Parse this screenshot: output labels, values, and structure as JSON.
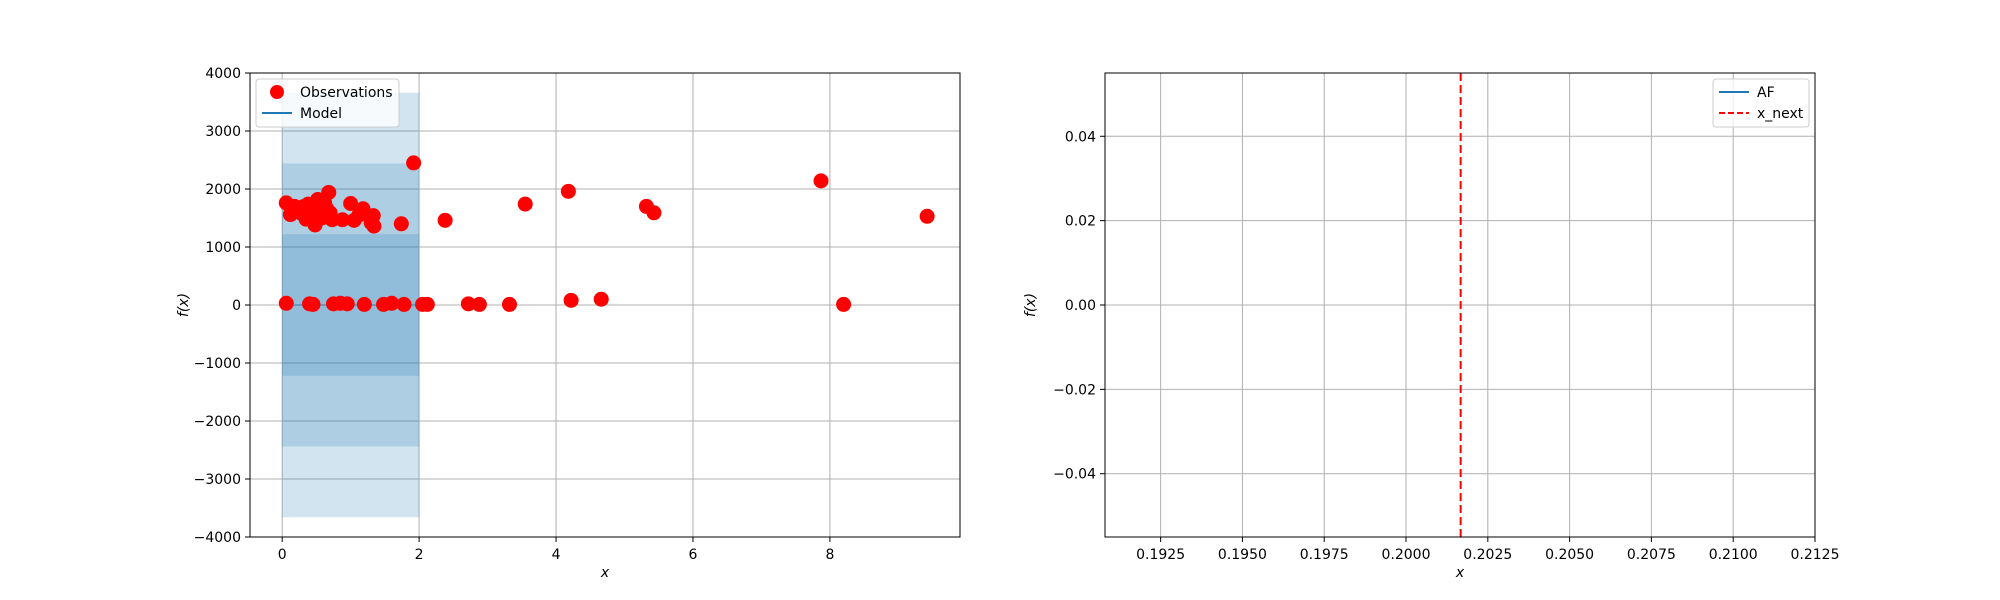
{
  "chart_data": [
    {
      "type": "scatter",
      "title": "",
      "xlabel": "x",
      "ylabel": "f(x)",
      "xlim": [
        -0.47,
        9.9
      ],
      "ylim": [
        -4000,
        4000
      ],
      "xticks": [
        0,
        2,
        4,
        6,
        8
      ],
      "yticks": [
        -4000,
        -3000,
        -2000,
        -1000,
        0,
        1000,
        2000,
        3000,
        4000
      ],
      "grid": true,
      "legend_position": "top-left",
      "legend": [
        "Observations",
        "Model"
      ],
      "series": [
        {
          "name": "Observations",
          "color": "#ff0000",
          "points": [
            [
              0.06,
              1760
            ],
            [
              0.12,
              1560
            ],
            [
              0.18,
              1700
            ],
            [
              0.22,
              1650
            ],
            [
              0.28,
              1580
            ],
            [
              0.32,
              1700
            ],
            [
              0.35,
              1480
            ],
            [
              0.38,
              1740
            ],
            [
              0.42,
              1550
            ],
            [
              0.45,
              1650
            ],
            [
              0.48,
              1380
            ],
            [
              0.5,
              1600
            ],
            [
              0.52,
              1820
            ],
            [
              0.55,
              1700
            ],
            [
              0.58,
              1500
            ],
            [
              0.62,
              1760
            ],
            [
              0.65,
              1660
            ],
            [
              0.68,
              1940
            ],
            [
              0.7,
              1590
            ],
            [
              0.73,
              1470
            ],
            [
              0.88,
              1470
            ],
            [
              1.0,
              1750
            ],
            [
              1.05,
              1460
            ],
            [
              1.12,
              1550
            ],
            [
              1.18,
              1660
            ],
            [
              1.3,
              1420
            ],
            [
              1.33,
              1540
            ],
            [
              1.34,
              1360
            ],
            [
              1.74,
              1400
            ],
            [
              1.92,
              2450
            ],
            [
              2.38,
              1460
            ],
            [
              3.55,
              1740
            ],
            [
              4.18,
              1960
            ],
            [
              5.32,
              1700
            ],
            [
              5.43,
              1590
            ],
            [
              7.87,
              2140
            ],
            [
              9.42,
              1530
            ],
            [
              0.06,
              30
            ],
            [
              0.4,
              20
            ],
            [
              0.45,
              10
            ],
            [
              0.75,
              20
            ],
            [
              0.85,
              30
            ],
            [
              0.95,
              20
            ],
            [
              1.2,
              10
            ],
            [
              1.48,
              10
            ],
            [
              1.6,
              30
            ],
            [
              1.78,
              10
            ],
            [
              2.05,
              10
            ],
            [
              2.12,
              10
            ],
            [
              2.72,
              20
            ],
            [
              2.88,
              10
            ],
            [
              3.32,
              10
            ],
            [
              4.22,
              80
            ],
            [
              4.66,
              100
            ],
            [
              8.2,
              10
            ]
          ]
        },
        {
          "name": "Model",
          "color": "#1f77b4",
          "x_range": [
            0,
            2
          ],
          "mean": 0,
          "bands": [
            {
              "lower": -1220,
              "upper": 1220
            },
            {
              "lower": -2440,
              "upper": 2440
            },
            {
              "lower": -3660,
              "upper": 3660
            }
          ]
        }
      ]
    },
    {
      "type": "line",
      "title": "",
      "xlabel": "x",
      "ylabel": "f(x)",
      "xlim": [
        0.1908,
        0.2125
      ],
      "ylim": [
        -0.055,
        0.055
      ],
      "xticks": [
        0.1925,
        0.195,
        0.1975,
        0.2,
        0.2025,
        0.205,
        0.2075,
        0.21,
        0.2125
      ],
      "xtick_labels": [
        "0.1925",
        "0.1950",
        "0.1975",
        "0.2000",
        "0.2025",
        "0.2050",
        "0.2075",
        "0.2100",
        "0.2125"
      ],
      "yticks": [
        -0.04,
        -0.02,
        0.0,
        0.02,
        0.04
      ],
      "ytick_labels": [
        "−0.04",
        "−0.02",
        "0.00",
        "0.02",
        "0.04"
      ],
      "grid": true,
      "legend_position": "top-right",
      "legend": [
        "AF",
        "x_next"
      ],
      "series": [
        {
          "name": "AF",
          "color": "#1f77b4",
          "points": []
        },
        {
          "name": "x_next",
          "color": "#ff0000",
          "style": "dashed",
          "x": 0.20167
        }
      ]
    }
  ]
}
